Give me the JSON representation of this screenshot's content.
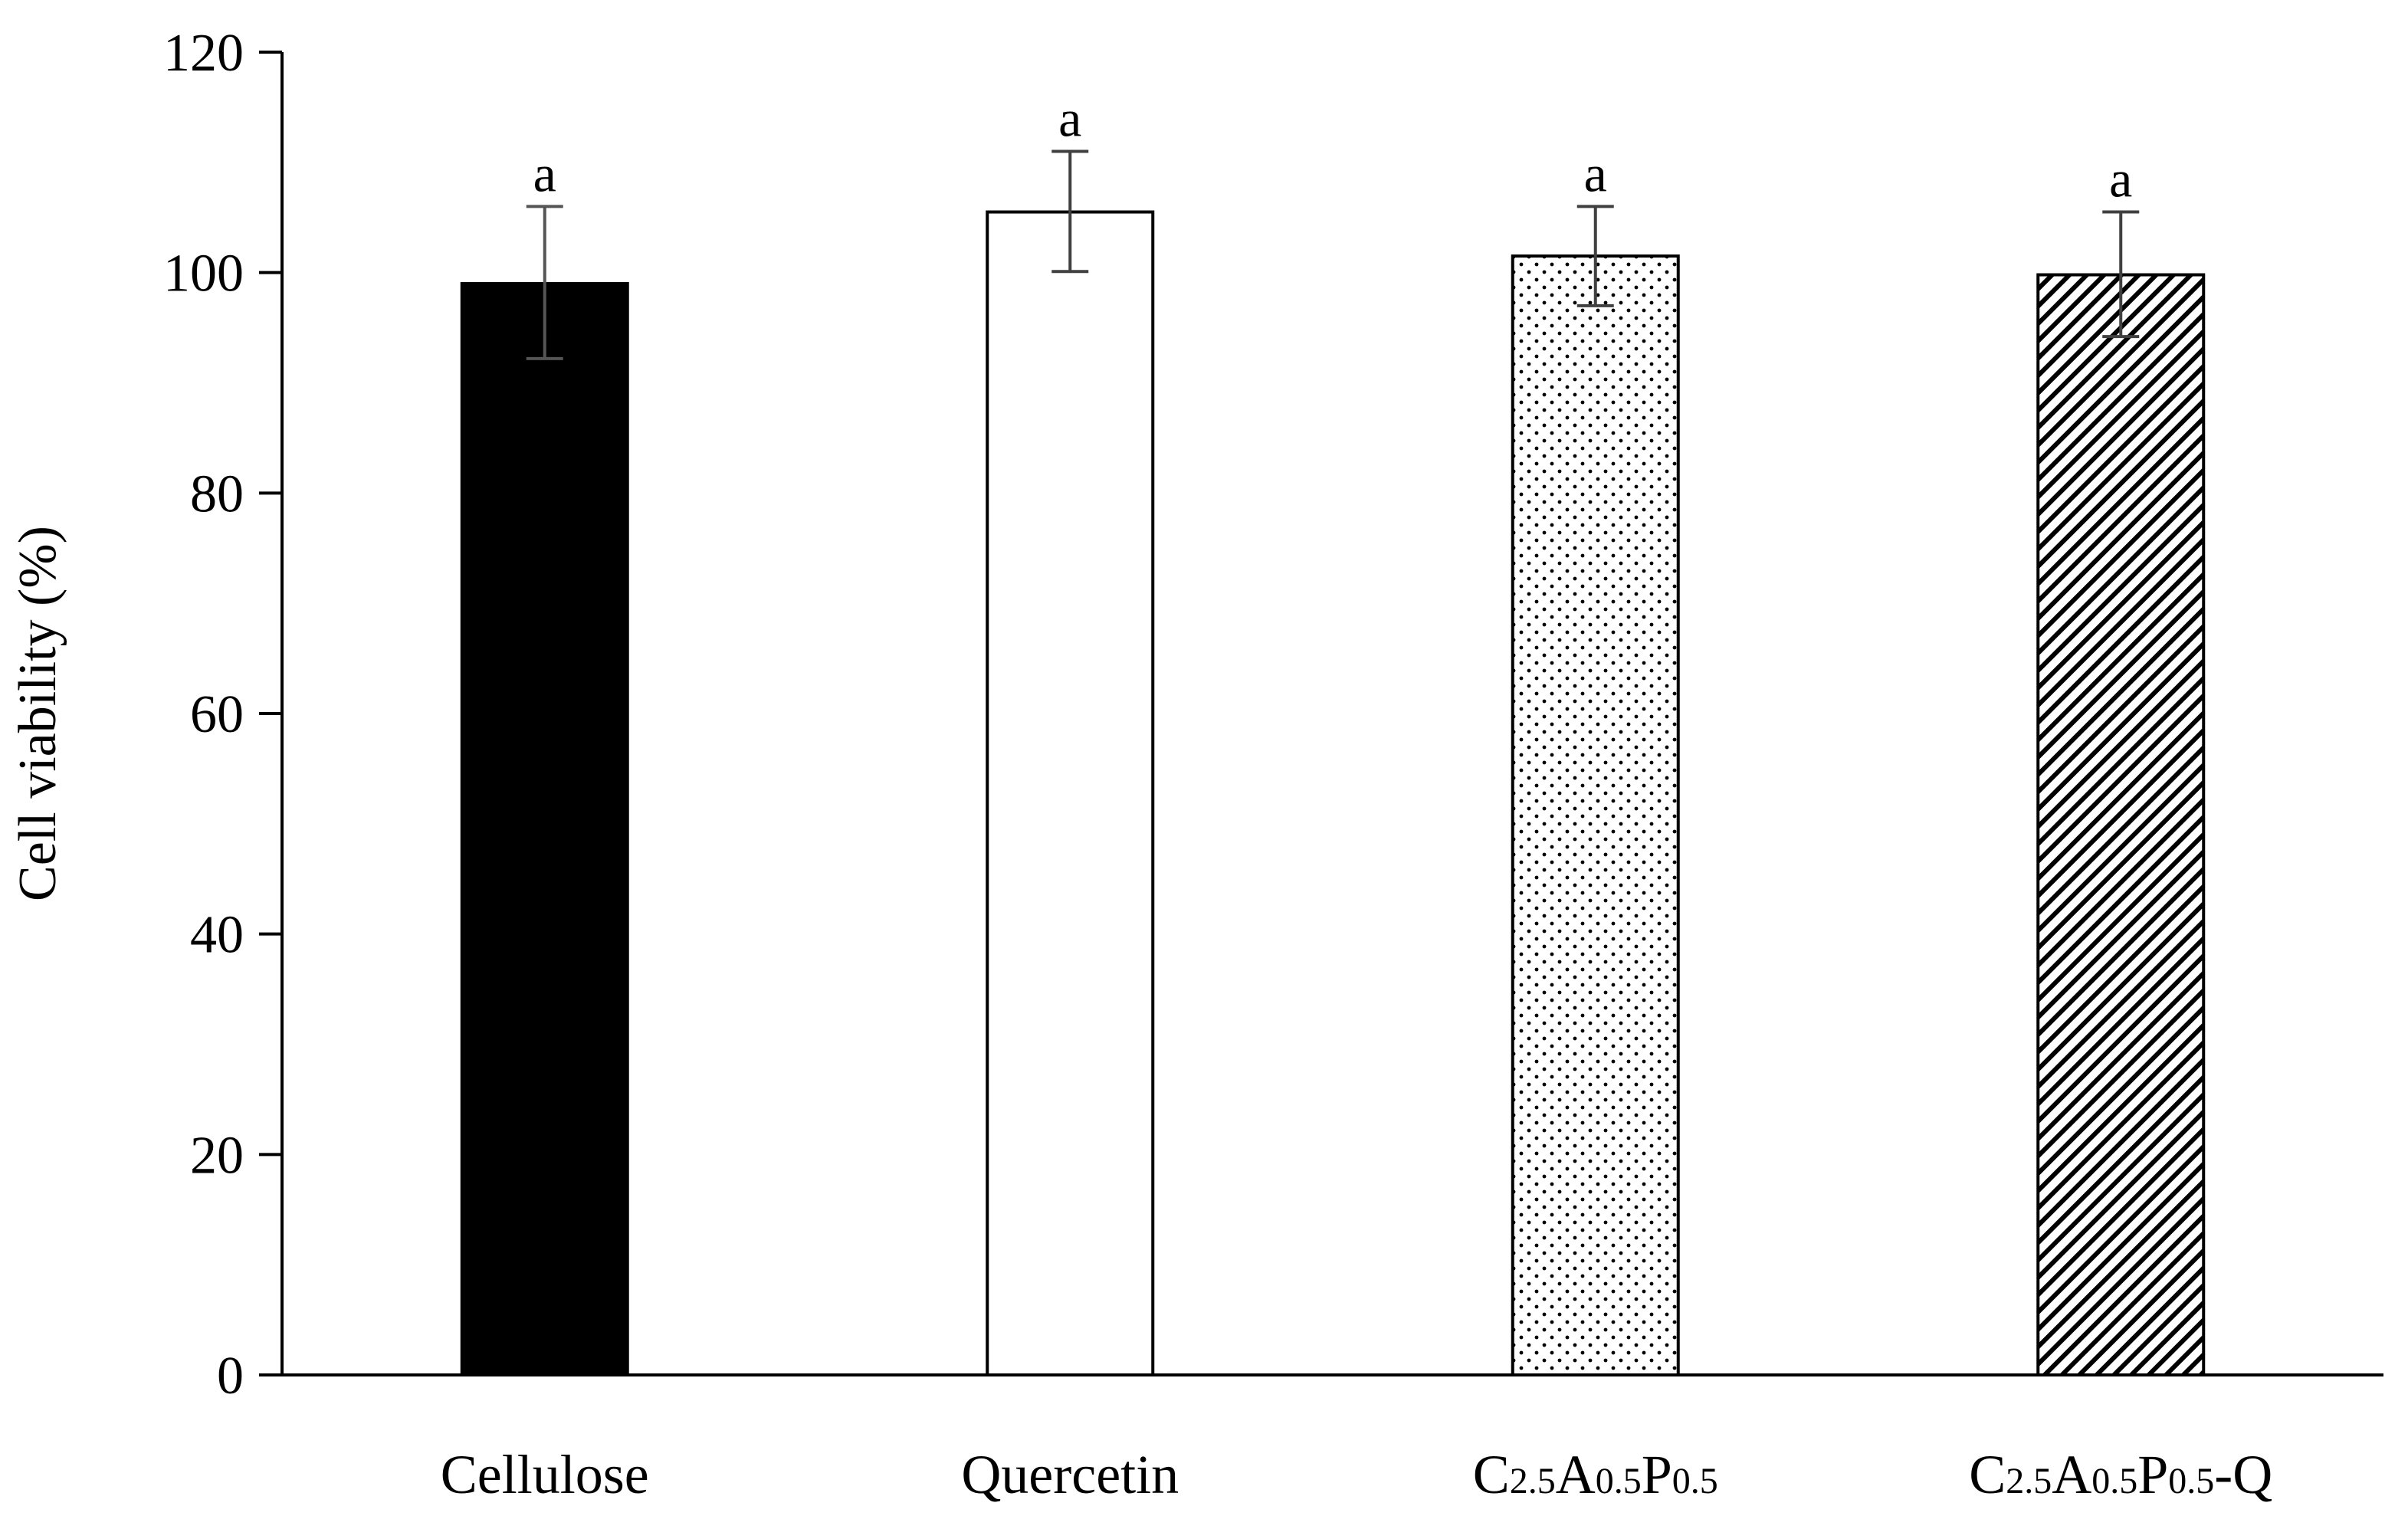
{
  "chart_data": {
    "type": "bar",
    "ylabel": "Cell viability (%)",
    "xlabel": "",
    "ylim": [
      0,
      120
    ],
    "yticks": [
      0,
      20,
      40,
      60,
      80,
      100,
      120
    ],
    "grid": false,
    "legend": "none",
    "categories": [
      "Cellulose",
      "Quercetin",
      "C2.5A0.5P0.5",
      "C2.5A0.5P0.5-Q"
    ],
    "category_display": [
      [
        {
          "t": "Cellulose",
          "sub": false
        }
      ],
      [
        {
          "t": "Quercetin",
          "sub": false
        }
      ],
      [
        {
          "t": "C",
          "sub": false
        },
        {
          "t": "2.5",
          "sub": true
        },
        {
          "t": "A",
          "sub": false
        },
        {
          "t": "0.5",
          "sub": true
        },
        {
          "t": "P",
          "sub": false
        },
        {
          "t": "0.5",
          "sub": true
        }
      ],
      [
        {
          "t": "C",
          "sub": false
        },
        {
          "t": "2.5",
          "sub": true
        },
        {
          "t": "A",
          "sub": false
        },
        {
          "t": "0.5",
          "sub": true
        },
        {
          "t": "P",
          "sub": false
        },
        {
          "t": "0.5",
          "sub": true
        },
        {
          "t": "-Q",
          "sub": false
        }
      ]
    ],
    "values": [
      99,
      105.5,
      101.5,
      99.8
    ],
    "error_low": [
      92.2,
      100.1,
      97,
      94.2
    ],
    "error_high": [
      106,
      111,
      106,
      105.5
    ],
    "significance_labels": [
      "a",
      "a",
      "a",
      "a"
    ],
    "fills": [
      "solid-black",
      "white",
      "dotted",
      "diagonal-hatch"
    ]
  },
  "colors": {
    "axis": "#000000",
    "bar_outline": "#000000",
    "error_bar": "#404040",
    "solid_fill": "#000000",
    "background": "#ffffff"
  }
}
